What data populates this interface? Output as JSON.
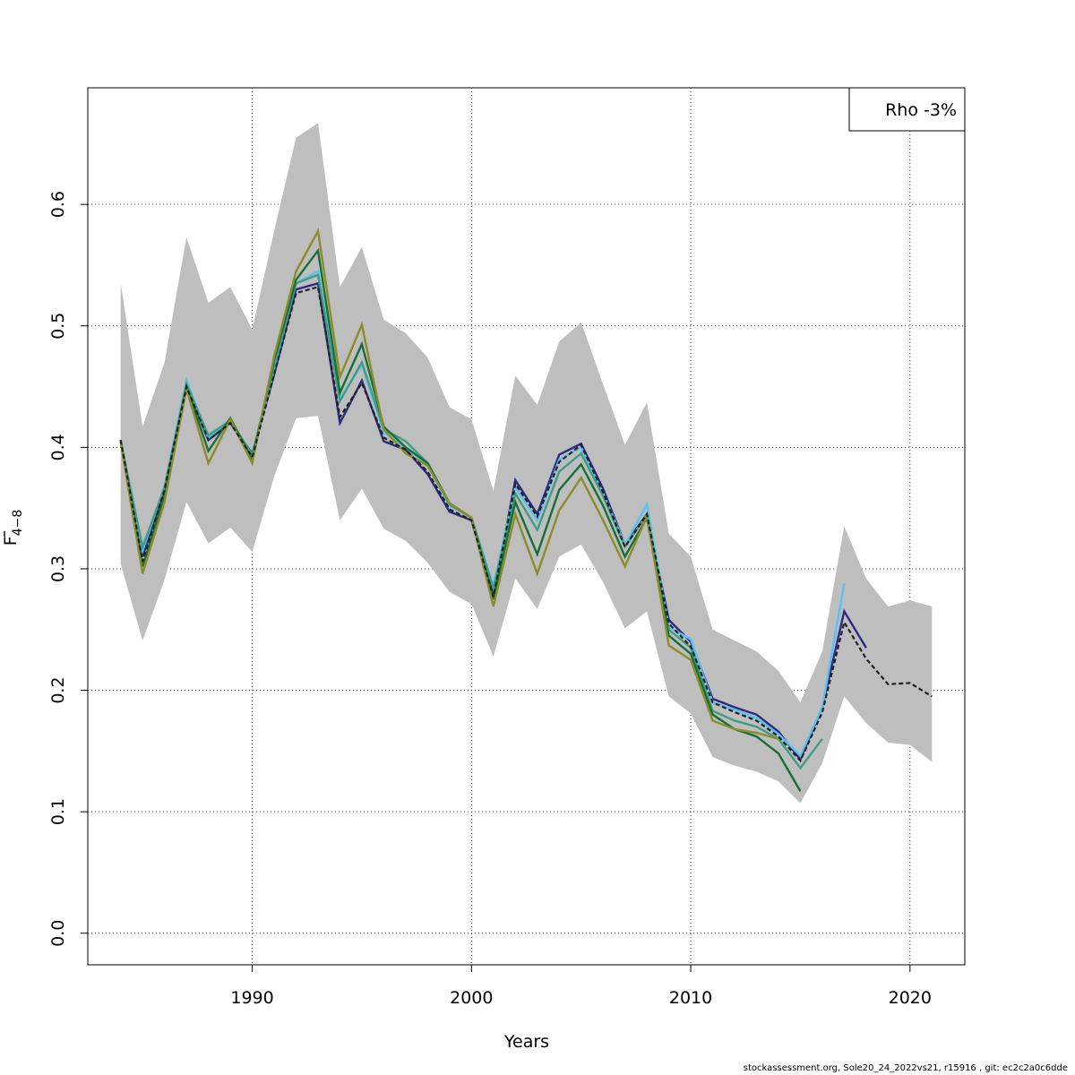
{
  "chart_data": {
    "type": "line",
    "xlabel": "Years",
    "ylabel_main": "F",
    "ylabel_sub": "4−8",
    "xlim": [
      1982.5,
      2022.5
    ],
    "ylim": [
      -0.026,
      0.696
    ],
    "xticks": [
      1990,
      2000,
      2010,
      2020
    ],
    "yticks": [
      0.0,
      0.1,
      0.2,
      0.3,
      0.4,
      0.5,
      0.6
    ],
    "grid": true,
    "legend_text": "Rho -3%",
    "legend_position": "top-right",
    "band": {
      "x": [
        1984,
        1985,
        1986,
        1987,
        1988,
        1989,
        1990,
        1991,
        1992,
        1993,
        1994,
        1995,
        1996,
        1997,
        1998,
        1999,
        2000,
        2001,
        2002,
        2003,
        2004,
        2005,
        2006,
        2007,
        2008,
        2009,
        2010,
        2011,
        2012,
        2013,
        2014,
        2015,
        2016,
        2017,
        2018,
        2019,
        2020,
        2021
      ],
      "upper": [
        0.535,
        0.417,
        0.47,
        0.573,
        0.519,
        0.532,
        0.497,
        0.578,
        0.655,
        0.667,
        0.532,
        0.565,
        0.505,
        0.494,
        0.474,
        0.433,
        0.423,
        0.364,
        0.459,
        0.435,
        0.487,
        0.503,
        0.452,
        0.402,
        0.437,
        0.329,
        0.31,
        0.25,
        0.241,
        0.232,
        0.216,
        0.19,
        0.232,
        0.335,
        0.292,
        0.269,
        0.274,
        0.269
      ],
      "lower": [
        0.304,
        0.241,
        0.291,
        0.355,
        0.321,
        0.334,
        0.314,
        0.376,
        0.424,
        0.426,
        0.34,
        0.366,
        0.333,
        0.323,
        0.305,
        0.281,
        0.271,
        0.228,
        0.292,
        0.267,
        0.31,
        0.32,
        0.289,
        0.251,
        0.265,
        0.195,
        0.181,
        0.145,
        0.138,
        0.133,
        0.125,
        0.107,
        0.14,
        0.195,
        0.173,
        0.157,
        0.155,
        0.141
      ],
      "color": "#bebebe"
    },
    "series": [
      {
        "color": "#2e2a83",
        "dashed": false,
        "x_start": 1984,
        "values": [
          0.405,
          0.31,
          0.365,
          0.452,
          0.406,
          0.42,
          0.395,
          0.46,
          0.53,
          0.535,
          0.42,
          0.455,
          0.405,
          0.398,
          0.378,
          0.347,
          0.34,
          0.278,
          0.373,
          0.345,
          0.394,
          0.403,
          0.366,
          0.32,
          0.345,
          0.258,
          0.24,
          0.193,
          0.186,
          0.18,
          0.166,
          0.143,
          0.186,
          0.265,
          0.235
        ]
      },
      {
        "color": "#58c2f0",
        "dashed": false,
        "x_start": 1984,
        "values": [
          0.404,
          0.315,
          0.368,
          0.455,
          0.408,
          0.423,
          0.392,
          0.465,
          0.535,
          0.545,
          0.44,
          0.468,
          0.412,
          0.4,
          0.385,
          0.352,
          0.342,
          0.286,
          0.367,
          0.34,
          0.39,
          0.4,
          0.362,
          0.32,
          0.353,
          0.252,
          0.242,
          0.19,
          0.184,
          0.177,
          0.164,
          0.146,
          0.186,
          0.288
        ]
      },
      {
        "color": "#3f9d84",
        "dashed": false,
        "x_start": 1984,
        "values": [
          0.405,
          0.318,
          0.367,
          0.452,
          0.41,
          0.422,
          0.394,
          0.467,
          0.535,
          0.542,
          0.438,
          0.47,
          0.415,
          0.405,
          0.387,
          0.353,
          0.342,
          0.284,
          0.362,
          0.332,
          0.38,
          0.395,
          0.36,
          0.318,
          0.345,
          0.25,
          0.235,
          0.183,
          0.175,
          0.17,
          0.16,
          0.136,
          0.16
        ]
      },
      {
        "color": "#167036",
        "dashed": false,
        "x_start": 1984,
        "values": [
          0.406,
          0.302,
          0.36,
          0.45,
          0.397,
          0.424,
          0.39,
          0.472,
          0.538,
          0.562,
          0.445,
          0.485,
          0.417,
          0.4,
          0.387,
          0.354,
          0.342,
          0.275,
          0.355,
          0.312,
          0.365,
          0.386,
          0.352,
          0.31,
          0.342,
          0.245,
          0.23,
          0.18,
          0.168,
          0.162,
          0.148,
          0.117
        ]
      },
      {
        "color": "#8b8c2a",
        "dashed": false,
        "x_start": 1984,
        "values": [
          0.404,
          0.296,
          0.355,
          0.448,
          0.387,
          0.423,
          0.387,
          0.475,
          0.545,
          0.578,
          0.458,
          0.501,
          0.415,
          0.395,
          0.385,
          0.354,
          0.342,
          0.269,
          0.345,
          0.296,
          0.348,
          0.375,
          0.34,
          0.302,
          0.343,
          0.237,
          0.225,
          0.175,
          0.168,
          0.165,
          0.16
        ]
      },
      {
        "color": "#222222",
        "dashed": true,
        "x_start": 1984,
        "values": [
          0.406,
          0.306,
          0.365,
          0.45,
          0.406,
          0.42,
          0.392,
          0.46,
          0.527,
          0.532,
          0.425,
          0.453,
          0.408,
          0.398,
          0.38,
          0.349,
          0.34,
          0.277,
          0.37,
          0.343,
          0.388,
          0.402,
          0.363,
          0.318,
          0.345,
          0.255,
          0.236,
          0.19,
          0.182,
          0.175,
          0.162,
          0.142,
          0.182,
          0.256,
          0.226,
          0.205,
          0.206,
          0.195
        ]
      }
    ]
  },
  "footer": "stockassessment.org, Sole20_24_2022vs21, r15916 , git: ec2c2a0c6dde"
}
